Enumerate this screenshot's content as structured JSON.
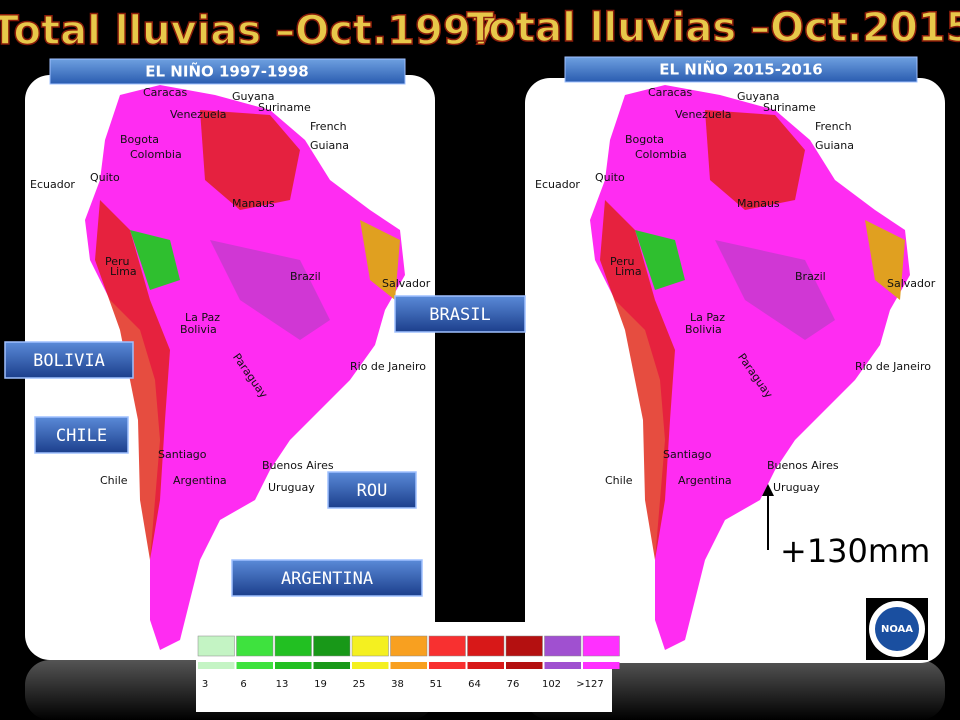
{
  "slide": {
    "titles": [
      "Total lluvias –Oct.1997",
      "Total lluvias –Oct.2015"
    ],
    "subtitles": [
      "EL NIÑO 1997-1998",
      "EL NIÑO 2015-2016"
    ],
    "map_labels": [
      "Caracas",
      "Guyana",
      "Venezuela",
      "Suriname",
      "French",
      "Guiana",
      "Bogota",
      "Colombia",
      "Quito",
      "Ecuador",
      "Manaus",
      "Peru",
      "Lima",
      "Brazil",
      "Salvador",
      "La Paz",
      "Bolivia",
      "Rio de Janeiro",
      "Paraguay",
      "Santiago",
      "Buenos Aires",
      "Chile",
      "Argentina",
      "Uruguay"
    ],
    "country_buttons": [
      "BOLIVIA",
      "CHILE",
      "BRASIL",
      "ROU",
      "ARGENTINA"
    ],
    "annotation": "+130mm",
    "logo": "NOAA",
    "legend": {
      "labels": [
        "3",
        "6",
        "13",
        "19",
        "25",
        "38",
        "51",
        "64",
        "76",
        "102",
        ">127"
      ],
      "colors": [
        "#c4f4c4",
        "#3ee23e",
        "#22c022",
        "#189818",
        "#f4f020",
        "#f8a020",
        "#f83030",
        "#d81818",
        "#b41010",
        "#a050d0",
        "#ff30ff"
      ]
    }
  }
}
